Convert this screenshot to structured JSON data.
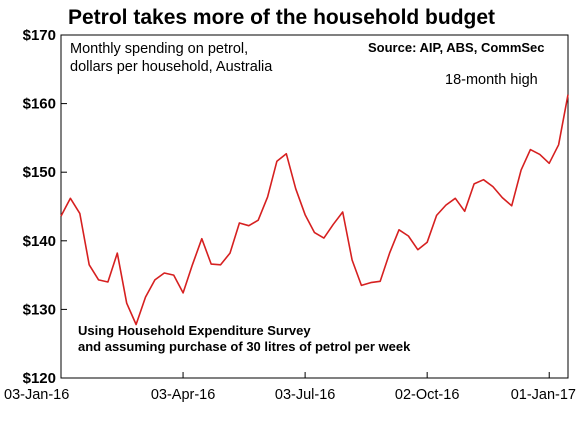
{
  "chart_data": {
    "type": "line",
    "title": "Petrol takes more of the household budget",
    "subtitle_lines": [
      "Monthly spending on petrol,",
      "dollars per household, Australia"
    ],
    "source": "Source: AIP, ABS, CommSec",
    "annotation": "18-month high",
    "footnote_lines": [
      "Using Household Expenditure Survey",
      "and assuming purchase of 30 litres of petrol per week"
    ],
    "ylim": [
      120,
      170
    ],
    "yticks": [
      120,
      130,
      140,
      150,
      160,
      170
    ],
    "ytick_labels": [
      "$120",
      "$130",
      "$140",
      "$150",
      "$160",
      "$170"
    ],
    "xlim": [
      "2016-01-03",
      "2017-01-15"
    ],
    "xticks": [
      "2016-01-03",
      "2016-04-03",
      "2016-07-03",
      "2016-10-02",
      "2017-01-01"
    ],
    "xtick_labels": [
      "03-Jan-16",
      "03-Apr-16",
      "03-Jul-16",
      "02-Oct-16",
      "01-Jan-17"
    ],
    "line_color": "#d62020",
    "grid": false,
    "series": [
      {
        "x": [
          "2016-01-03",
          "2016-01-10",
          "2016-01-17",
          "2016-01-24",
          "2016-01-31",
          "2016-02-07",
          "2016-02-14",
          "2016-02-21",
          "2016-02-28",
          "2016-03-06",
          "2016-03-13",
          "2016-03-20",
          "2016-03-27",
          "2016-04-03",
          "2016-04-10",
          "2016-04-17",
          "2016-04-24",
          "2016-05-01",
          "2016-05-08",
          "2016-05-15",
          "2016-05-22",
          "2016-05-29",
          "2016-06-05",
          "2016-06-12",
          "2016-06-19",
          "2016-06-26",
          "2016-07-03",
          "2016-07-10",
          "2016-07-17",
          "2016-07-24",
          "2016-07-31",
          "2016-08-07",
          "2016-08-14",
          "2016-08-21",
          "2016-08-28",
          "2016-09-04",
          "2016-09-11",
          "2016-09-18",
          "2016-09-25",
          "2016-10-02",
          "2016-10-09",
          "2016-10-16",
          "2016-10-23",
          "2016-10-30",
          "2016-11-06",
          "2016-11-13",
          "2016-11-20",
          "2016-11-27",
          "2016-12-04",
          "2016-12-11",
          "2016-12-18",
          "2016-12-25",
          "2017-01-01",
          "2017-01-08",
          "2017-01-15"
        ],
        "y": [
          143.6,
          146.2,
          144.0,
          136.5,
          134.3,
          134.0,
          138.2,
          130.9,
          127.8,
          131.8,
          134.3,
          135.3,
          135.0,
          132.4,
          136.5,
          140.3,
          136.6,
          136.5,
          138.2,
          142.6,
          142.2,
          143.0,
          146.4,
          151.6,
          152.7,
          147.6,
          143.8,
          141.2,
          140.4,
          142.4,
          144.2,
          137.2,
          133.5,
          133.9,
          134.1,
          138.2,
          141.6,
          140.7,
          138.7,
          139.8,
          143.7,
          145.2,
          146.2,
          144.3,
          148.3,
          148.9,
          147.9,
          146.3,
          145.1,
          150.3,
          153.3,
          152.6,
          151.3,
          154.0,
          161.3
        ]
      }
    ]
  }
}
